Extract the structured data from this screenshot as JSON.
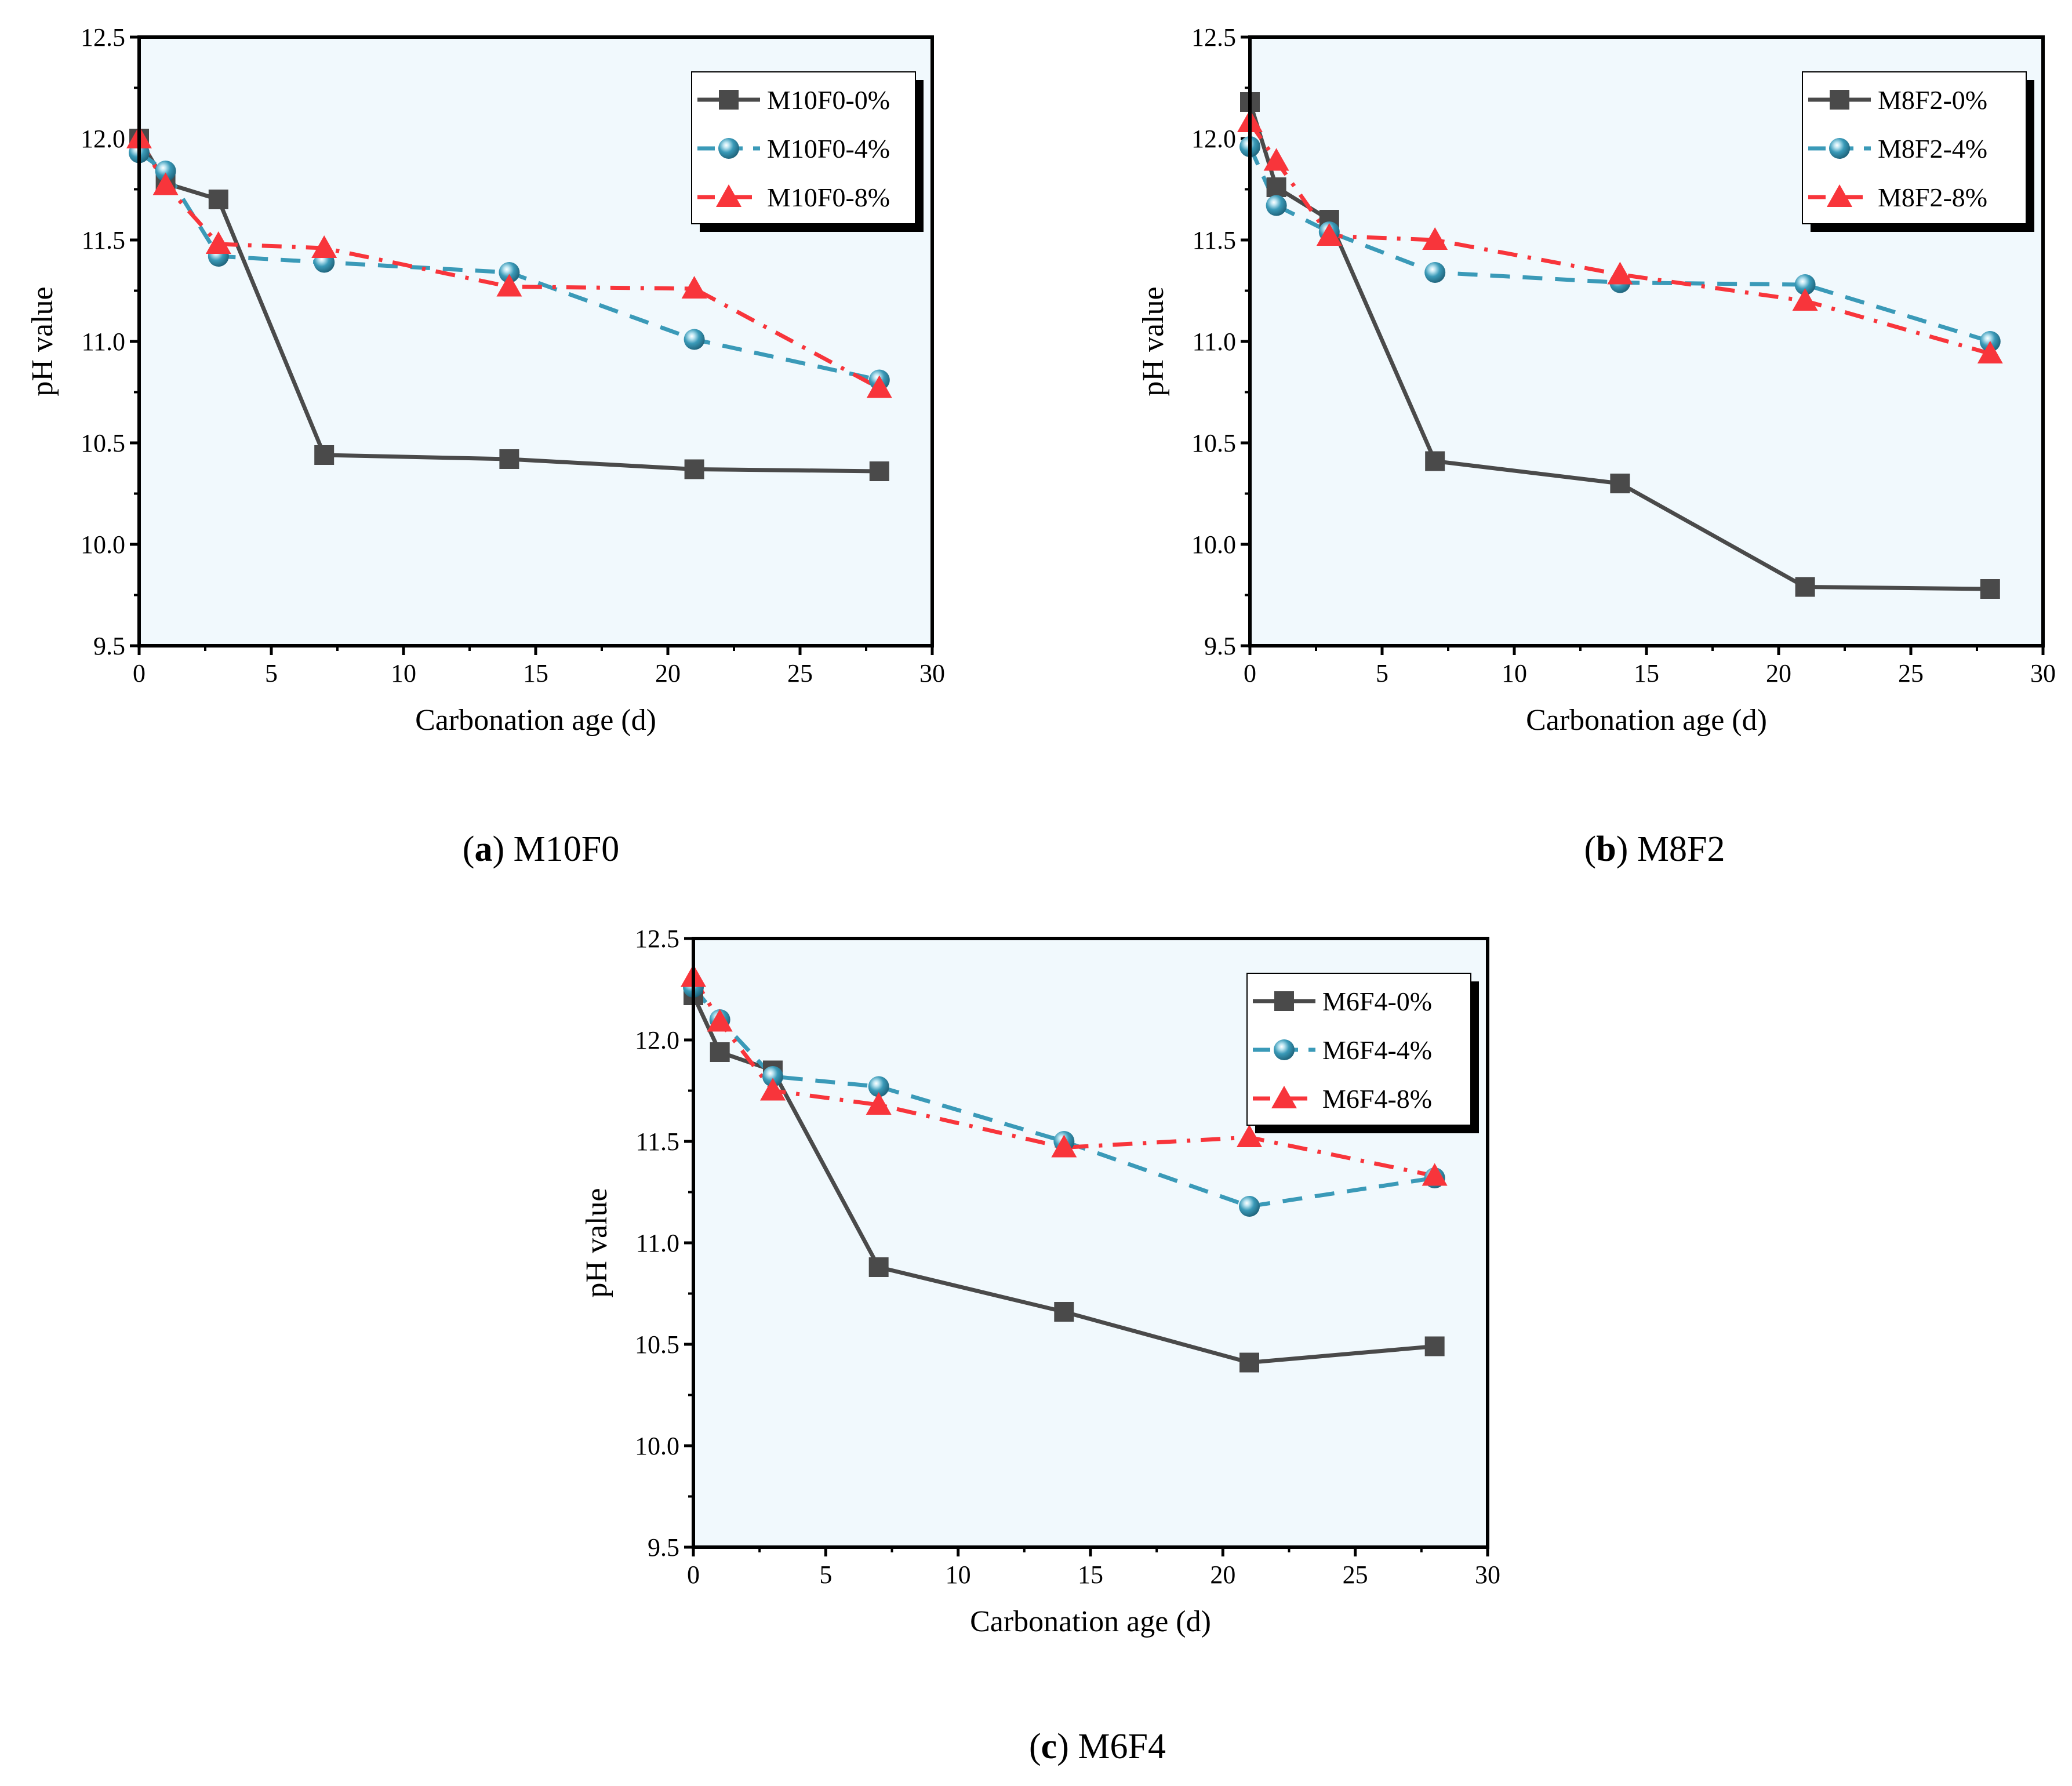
{
  "chart_data": [
    {
      "type": "line",
      "caption_letter": "a",
      "caption_name": "M10F0",
      "xlabel": "Carbonation age (d)",
      "ylabel": "pH value",
      "xlim": [
        0,
        30
      ],
      "ylim": [
        9.5,
        12.5
      ],
      "xticks": [
        "0",
        "5",
        "10",
        "15",
        "20",
        "25",
        "30"
      ],
      "yticks": [
        "9.5",
        "10.0",
        "10.5",
        "11.0",
        "11.5",
        "12.0",
        "12.5"
      ],
      "legend_position": "top-right",
      "grid": false,
      "x": [
        0,
        1,
        3,
        7,
        14,
        21,
        28
      ],
      "series": [
        {
          "name": "M10F0-0%",
          "values": [
            12.0,
            11.78,
            11.7,
            10.44,
            10.42,
            10.37,
            10.36
          ]
        },
        {
          "name": "M10F0-4%",
          "values": [
            11.93,
            11.84,
            11.42,
            11.39,
            11.34,
            11.01,
            10.81
          ]
        },
        {
          "name": "M10F0-8%",
          "values": [
            12.0,
            11.77,
            11.48,
            11.46,
            11.27,
            11.26,
            10.77
          ]
        }
      ]
    },
    {
      "type": "line",
      "caption_letter": "b",
      "caption_name": "M8F2",
      "xlabel": "Carbonation age (d)",
      "ylabel": "pH value",
      "xlim": [
        0,
        30
      ],
      "ylim": [
        9.5,
        12.5
      ],
      "xticks": [
        "0",
        "5",
        "10",
        "15",
        "20",
        "25",
        "30"
      ],
      "yticks": [
        "9.5",
        "10.0",
        "10.5",
        "11.0",
        "11.5",
        "12.0",
        "12.5"
      ],
      "legend_position": "top-right",
      "grid": false,
      "x": [
        0,
        1,
        3,
        7,
        14,
        21,
        28
      ],
      "series": [
        {
          "name": "M8F2-0%",
          "values": [
            12.18,
            11.76,
            11.6,
            10.41,
            10.3,
            9.79,
            9.78
          ]
        },
        {
          "name": "M8F2-4%",
          "values": [
            11.96,
            11.67,
            11.54,
            11.34,
            11.29,
            11.28,
            11.0
          ]
        },
        {
          "name": "M8F2-8%",
          "values": [
            12.08,
            11.89,
            11.52,
            11.5,
            11.33,
            11.2,
            10.94
          ]
        }
      ]
    },
    {
      "type": "line",
      "caption_letter": "c",
      "caption_name": "M6F4",
      "xlabel": "Carbonation age (d)",
      "ylabel": "pH value",
      "xlim": [
        0,
        30
      ],
      "ylim": [
        9.5,
        12.5
      ],
      "xticks": [
        "0",
        "5",
        "10",
        "15",
        "20",
        "25",
        "30"
      ],
      "yticks": [
        "9.5",
        "10.0",
        "10.5",
        "11.0",
        "11.5",
        "12.0",
        "12.5"
      ],
      "legend_position": "top-right",
      "grid": false,
      "x": [
        0,
        1,
        3,
        7,
        14,
        21,
        28
      ],
      "series": [
        {
          "name": "M6F4-0%",
          "values": [
            12.22,
            11.94,
            11.85,
            10.88,
            10.66,
            10.41,
            10.49
          ]
        },
        {
          "name": "M6F4-4%",
          "values": [
            12.26,
            12.1,
            11.82,
            11.77,
            11.5,
            11.18,
            11.32
          ]
        },
        {
          "name": "M6F4-8%",
          "values": [
            12.31,
            12.09,
            11.75,
            11.68,
            11.47,
            11.52,
            11.33
          ]
        }
      ]
    }
  ],
  "colors": {
    "series_0": "#4a4a4a",
    "series_4": "#3a9ab8",
    "series_8": "#f8353b",
    "plot_background": "#f1f9fd"
  }
}
